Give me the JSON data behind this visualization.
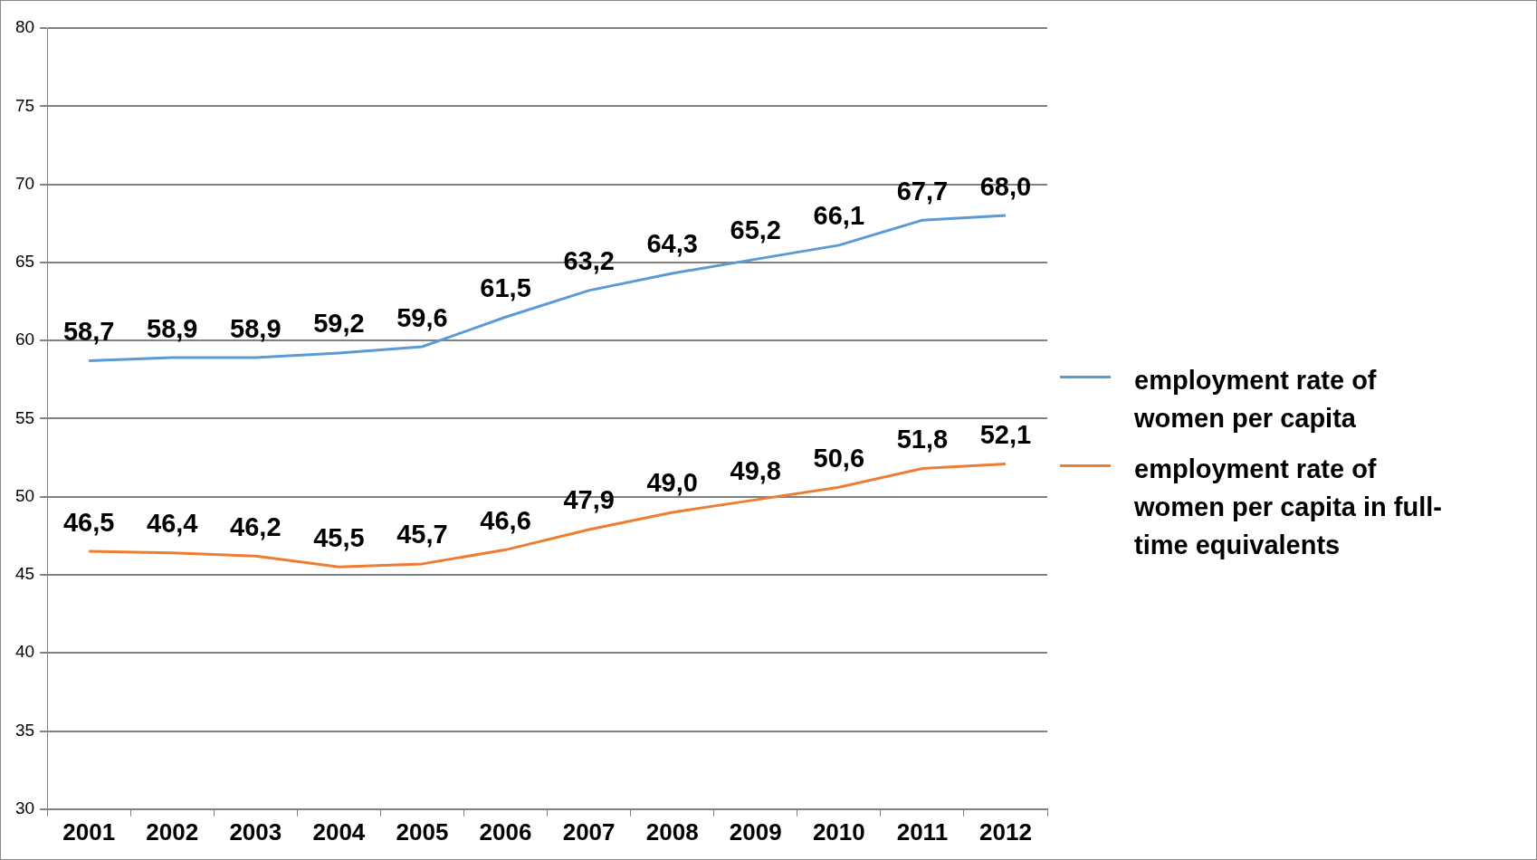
{
  "chart_data": {
    "type": "line",
    "categories": [
      "2001",
      "2002",
      "2003",
      "2004",
      "2005",
      "2006",
      "2007",
      "2008",
      "2009",
      "2010",
      "2011",
      "2012"
    ],
    "series": [
      {
        "name": "employment rate of women per capita",
        "color": "#5b9bd5",
        "values": [
          58.7,
          58.9,
          58.9,
          59.2,
          59.6,
          61.5,
          63.2,
          64.3,
          65.2,
          66.1,
          67.7,
          68.0
        ],
        "value_labels": [
          "58,7",
          "58,9",
          "58,9",
          "59,2",
          "59,6",
          "61,5",
          "63,2",
          "64,3",
          "65,2",
          "66,1",
          "67,7",
          "68,0"
        ]
      },
      {
        "name": "employment rate of women per capita in full-time equivalents",
        "color": "#ed7d31",
        "values": [
          46.5,
          46.4,
          46.2,
          45.5,
          45.7,
          46.6,
          47.9,
          49.0,
          49.8,
          50.6,
          51.8,
          52.1
        ],
        "value_labels": [
          "46,5",
          "46,4",
          "46,2",
          "45,5",
          "45,7",
          "46,6",
          "47,9",
          "49,0",
          "49,8",
          "50,6",
          "51,8",
          "52,1"
        ]
      }
    ],
    "ylim": [
      30,
      80
    ],
    "yticks": [
      30,
      35,
      40,
      45,
      50,
      55,
      60,
      65,
      70,
      75,
      80
    ],
    "grid": "y",
    "legend": "right",
    "marker": "none",
    "line_style": "solid"
  }
}
